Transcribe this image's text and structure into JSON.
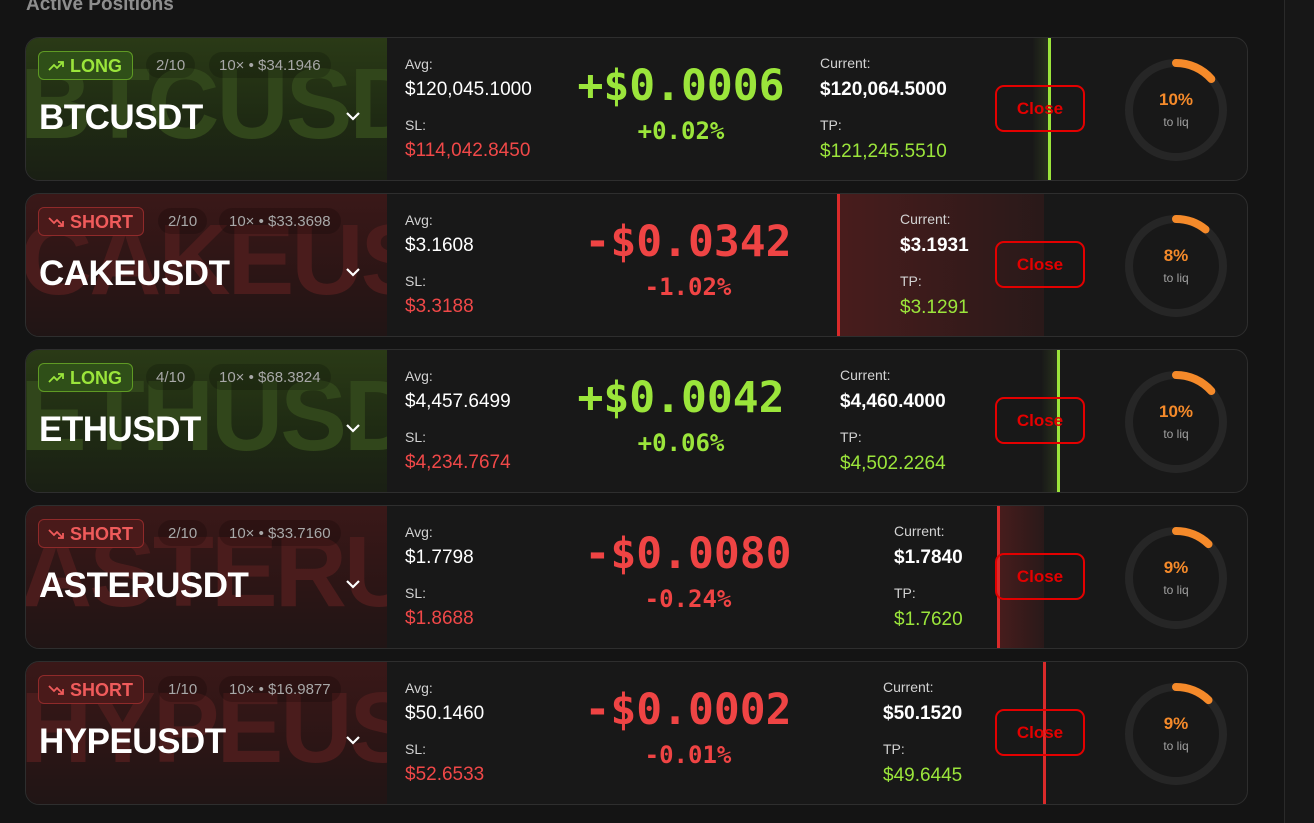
{
  "section_title": "Active Positions",
  "close_label": "Close",
  "to_liq_label": "to liq",
  "avg_label": "Avg:",
  "sl_label": "SL:",
  "current_label": "Current:",
  "tp_label": "TP:",
  "colors": {
    "long": "#9be53b",
    "short": "#ef4444",
    "close": "#e30000",
    "gauge": "#f58a2a"
  },
  "positions": [
    {
      "side": "LONG",
      "watermark": "BTCUSDT",
      "symbol": "BTCUSDT",
      "slot": "2/10",
      "leverage_margin": "10× • $34.1946",
      "avg": "$120,045.1000",
      "sl": "$114,042.8450",
      "pnl": "+$0.0006",
      "pnl_pct": "+0.02%",
      "current": "$120,064.5000",
      "tp": "$121,245.5510",
      "liq_pct": "10%",
      "liq_value": 0.1,
      "price_position": 0.83
    },
    {
      "side": "SHORT",
      "watermark": "CAKEUSDT",
      "symbol": "CAKEUSDT",
      "slot": "2/10",
      "leverage_margin": "10× • $33.3698",
      "avg": "$3.1608",
      "sl": "$3.3188",
      "pnl": "-$0.0342",
      "pnl_pct": "-1.02%",
      "current": "$3.1931",
      "tp": "$3.1291",
      "liq_pct": "8%",
      "liq_value": 0.08,
      "price_position": 0.2
    },
    {
      "side": "LONG",
      "watermark": "ETHUSDT",
      "symbol": "ETHUSDT",
      "slot": "4/10",
      "leverage_margin": "10× • $68.3824",
      "avg": "$4,457.6499",
      "sl": "$4,234.7674",
      "pnl": "+$0.0042",
      "pnl_pct": "+0.06%",
      "current": "$4,460.4000",
      "tp": "$4,502.2264",
      "liq_pct": "10%",
      "liq_value": 0.1,
      "price_position": 0.84
    },
    {
      "side": "SHORT",
      "watermark": "ASTERUSDT",
      "symbol": "ASTERUSDT",
      "slot": "2/10",
      "leverage_margin": "10× • $33.7160",
      "avg": "$1.7798",
      "sl": "$1.8688",
      "pnl": "-$0.0080",
      "pnl_pct": "-0.24%",
      "current": "$1.7840",
      "tp": "$1.7620",
      "liq_pct": "9%",
      "liq_value": 0.09,
      "price_position": 0.07
    },
    {
      "side": "SHORT",
      "watermark": "HYPEUSDT",
      "symbol": "HYPEUSDT",
      "slot": "1/10",
      "leverage_margin": "10× • $16.9877",
      "avg": "$50.1460",
      "sl": "$52.6533",
      "pnl": "-$0.0002",
      "pnl_pct": "-0.01%",
      "current": "$50.1520",
      "tp": "$49.6445",
      "liq_pct": "9%",
      "liq_value": 0.09,
      "price_position": 0.0
    }
  ]
}
